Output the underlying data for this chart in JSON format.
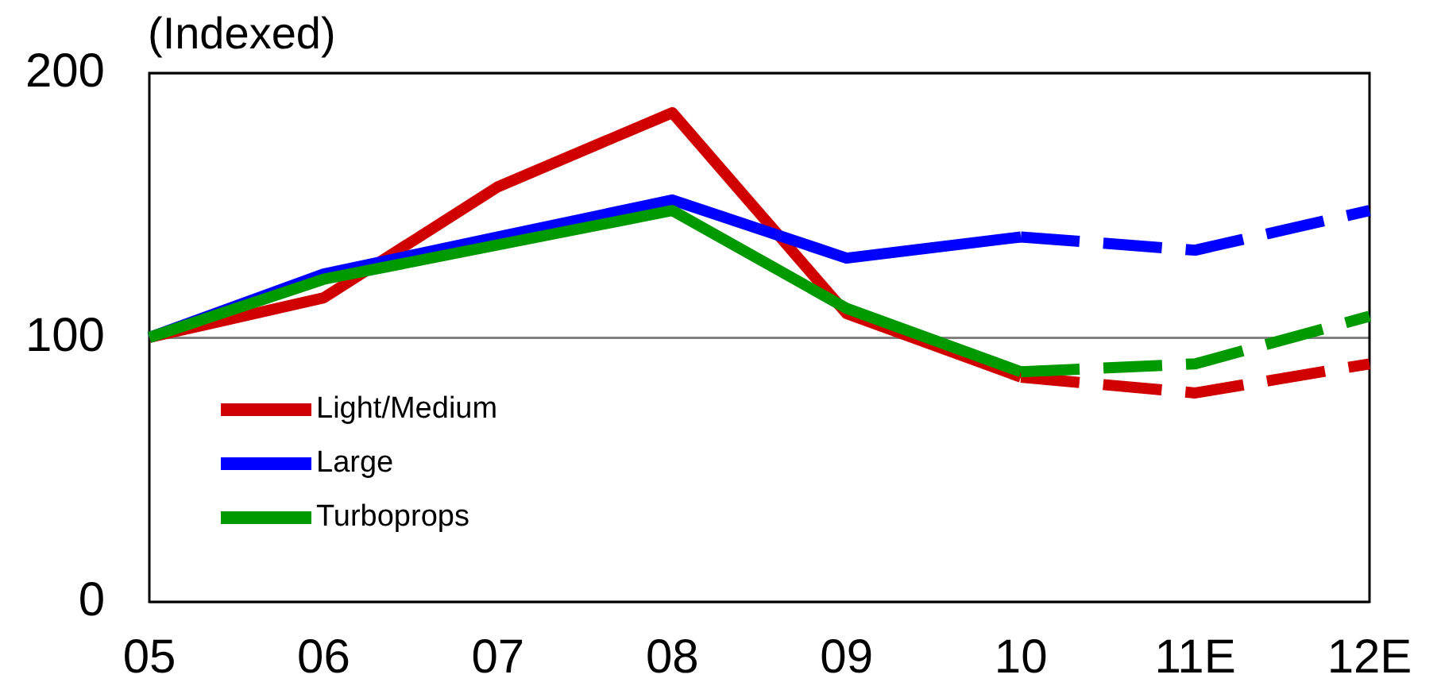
{
  "chart_data": {
    "type": "line",
    "ylabel": "(Indexed)",
    "categories": [
      "05",
      "06",
      "07",
      "08",
      "09",
      "10",
      "11E",
      "12E"
    ],
    "ylim": [
      0,
      200
    ],
    "yticks": [
      0,
      100,
      200
    ],
    "grid": "y",
    "legend": "bottom left",
    "marker": "none",
    "series": [
      {
        "name": "Light/Medium",
        "color": "#d00000",
        "line_style": "solid",
        "values": [
          100,
          115,
          157,
          185,
          109,
          85,
          null,
          null
        ]
      },
      {
        "color": "#d00000",
        "line_style": "dashed",
        "values": [
          null,
          null,
          null,
          null,
          null,
          85,
          79,
          90
        ]
      },
      {
        "name": "Large",
        "color": "#0000ff",
        "line_style": "solid",
        "values": [
          100,
          124,
          138,
          152,
          130,
          138,
          null,
          null
        ]
      },
      {
        "color": "#0000ff",
        "line_style": "dashed",
        "values": [
          null,
          null,
          null,
          null,
          null,
          138,
          133,
          148
        ]
      },
      {
        "name": "Turboprops",
        "color": "#009900",
        "line_style": "solid",
        "values": [
          100,
          122,
          135,
          148,
          111,
          87,
          null,
          null
        ]
      },
      {
        "color": "#009900",
        "line_style": "dashed",
        "values": [
          null,
          null,
          null,
          null,
          null,
          87,
          90,
          108
        ]
      }
    ]
  }
}
